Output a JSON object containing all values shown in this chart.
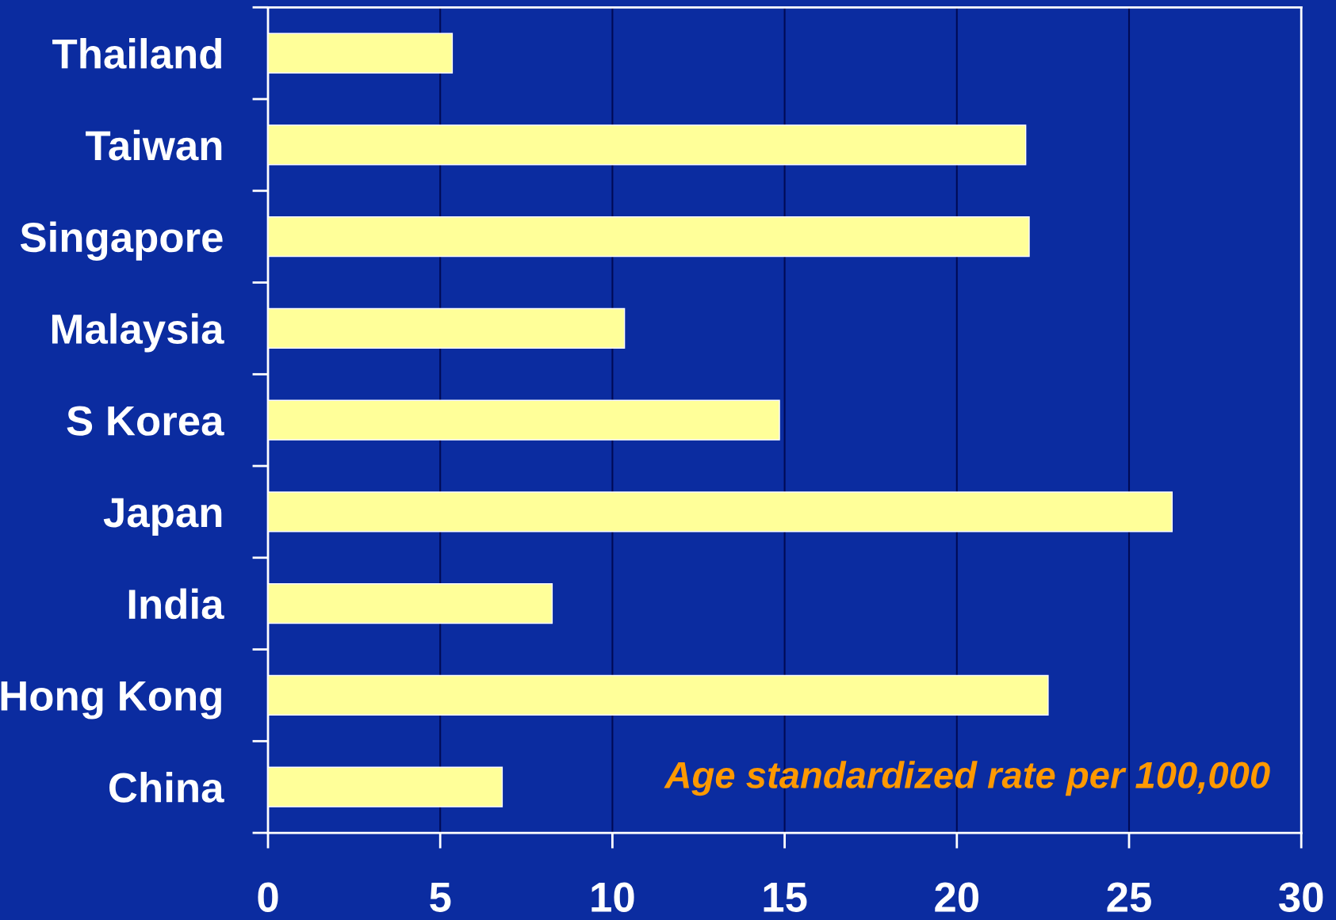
{
  "chart_data": {
    "type": "bar",
    "orientation": "horizontal",
    "categories": [
      "Thailand",
      "Taiwan",
      "Singapore",
      "Malaysia",
      "S Korea",
      "Japan",
      "India",
      "Hong Kong",
      "China"
    ],
    "values": [
      5.35,
      22.0,
      22.1,
      10.35,
      14.85,
      26.25,
      8.25,
      22.65,
      6.8
    ],
    "color": "#ffff99",
    "xlim": [
      0,
      30
    ],
    "xticks": [
      0,
      5,
      10,
      15,
      20,
      25,
      30
    ],
    "grid": "x",
    "annotations": [
      {
        "text": "Age standardized rate per 100,000"
      }
    ]
  }
}
